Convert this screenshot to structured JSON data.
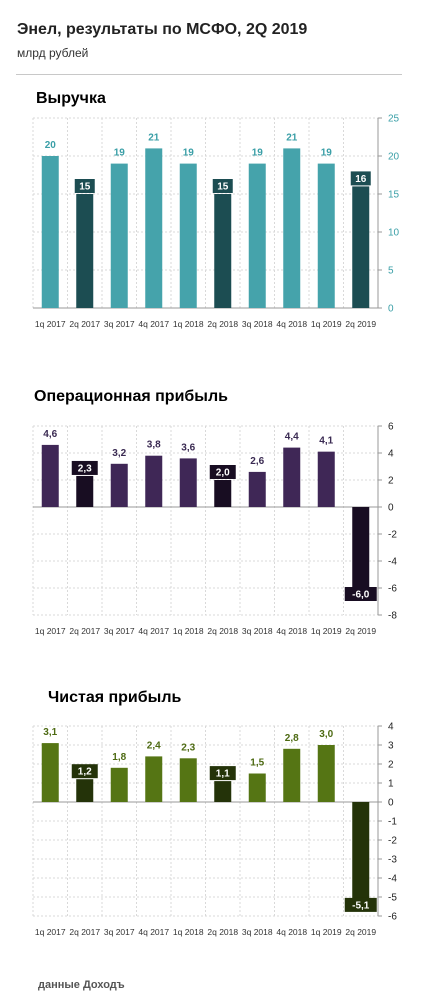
{
  "header": {
    "title": "Энел, результаты по МСФО, 2Q 2019",
    "subtitle": "млрд рублей"
  },
  "footer": {
    "source": "данные Доходъ"
  },
  "chart_data": [
    {
      "type": "bar",
      "title": "Выручка",
      "categories": [
        "1q 2017",
        "2q 2017",
        "3q 2017",
        "4q 2017",
        "1q 2018",
        "2q 2018",
        "3q 2018",
        "4q 2018",
        "1q 2019",
        "2q 2019"
      ],
      "values": [
        20,
        15,
        19,
        21,
        19,
        15,
        19,
        21,
        19,
        16
      ],
      "labels": [
        "20",
        "15",
        "19",
        "21",
        "19",
        "15",
        "19",
        "21",
        "19",
        "16"
      ],
      "ylim": [
        0,
        25
      ],
      "yticks": [
        0,
        5,
        10,
        15,
        20,
        25
      ],
      "ytick_labels": [
        "0",
        "5",
        "10",
        "15",
        "20",
        "25"
      ],
      "colors": {
        "title": "#3a9fa7",
        "normal": "#45a3ab",
        "highlight": "#1c4d52",
        "axis_text": "#3a9fa7"
      },
      "highlight": [
        1,
        5,
        9
      ],
      "grid": true,
      "yaxis_side": "right"
    },
    {
      "type": "bar",
      "title": "Операционная прибыль",
      "categories": [
        "1q 2017",
        "2q 2017",
        "3q 2017",
        "4q 2017",
        "1q 2018",
        "2q 2018",
        "3q 2018",
        "4q 2018",
        "1q 2019",
        "2q 2019"
      ],
      "values": [
        4.6,
        2.3,
        3.2,
        3.8,
        3.6,
        2.0,
        2.6,
        4.4,
        4.1,
        -6.0
      ],
      "labels": [
        "4,6",
        "2,3",
        "3,2",
        "3,8",
        "3,6",
        "2,0",
        "2,6",
        "4,4",
        "4,1",
        "-6,0"
      ],
      "ylim": [
        -8,
        6
      ],
      "yticks": [
        -8,
        -6,
        -4,
        -2,
        0,
        2,
        4,
        6
      ],
      "ytick_labels": [
        "-8",
        "-6",
        "-4",
        "-2",
        "0",
        "2",
        "4",
        "6"
      ],
      "colors": {
        "title": "#3a2a52",
        "normal": "#3f2756",
        "highlight": "#180d22",
        "axis_text": "#222222"
      },
      "highlight": [
        1,
        5,
        9
      ],
      "grid": true,
      "yaxis_side": "right"
    },
    {
      "type": "bar",
      "title": "Чистая прибыль",
      "categories": [
        "1q 2017",
        "2q 2017",
        "3q 2017",
        "4q 2017",
        "1q 2018",
        "2q 2018",
        "3q 2018",
        "4q 2018",
        "1q 2019",
        "2q 2019"
      ],
      "values": [
        3.1,
        1.2,
        1.8,
        2.4,
        2.3,
        1.1,
        1.5,
        2.8,
        3.0,
        -5.1
      ],
      "labels": [
        "3,1",
        "1,2",
        "1,8",
        "2,4",
        "2,3",
        "1,1",
        "1,5",
        "2,8",
        "3,0",
        "-5,1"
      ],
      "ylim": [
        -6,
        4
      ],
      "yticks": [
        -6,
        -5,
        -4,
        -3,
        -2,
        -1,
        0,
        1,
        2,
        3,
        4
      ],
      "ytick_labels": [
        "-6",
        "-5",
        "-4",
        "-3",
        "-2",
        "-1",
        "0",
        "1",
        "2",
        "3",
        "4"
      ],
      "colors": {
        "title": "#4d6a12",
        "normal": "#557514",
        "highlight": "#243309",
        "axis_text": "#222222"
      },
      "highlight": [
        1,
        5,
        9
      ],
      "grid": true,
      "yaxis_side": "right"
    }
  ]
}
